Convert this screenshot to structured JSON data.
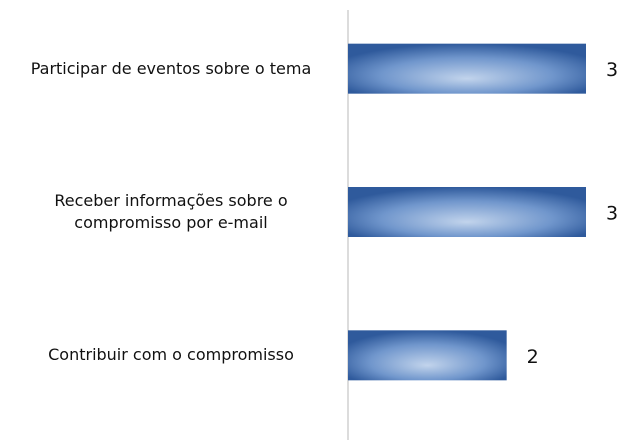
{
  "chart_data": {
    "type": "barh",
    "categories": [
      "Participar de eventos sobre o tema",
      "Receber informações sobre o compromisso por e-mail",
      "Contribuir com o compromisso"
    ],
    "values": [
      3,
      3,
      2
    ],
    "color": "#4a74b4",
    "xlim": [
      0,
      3
    ]
  }
}
